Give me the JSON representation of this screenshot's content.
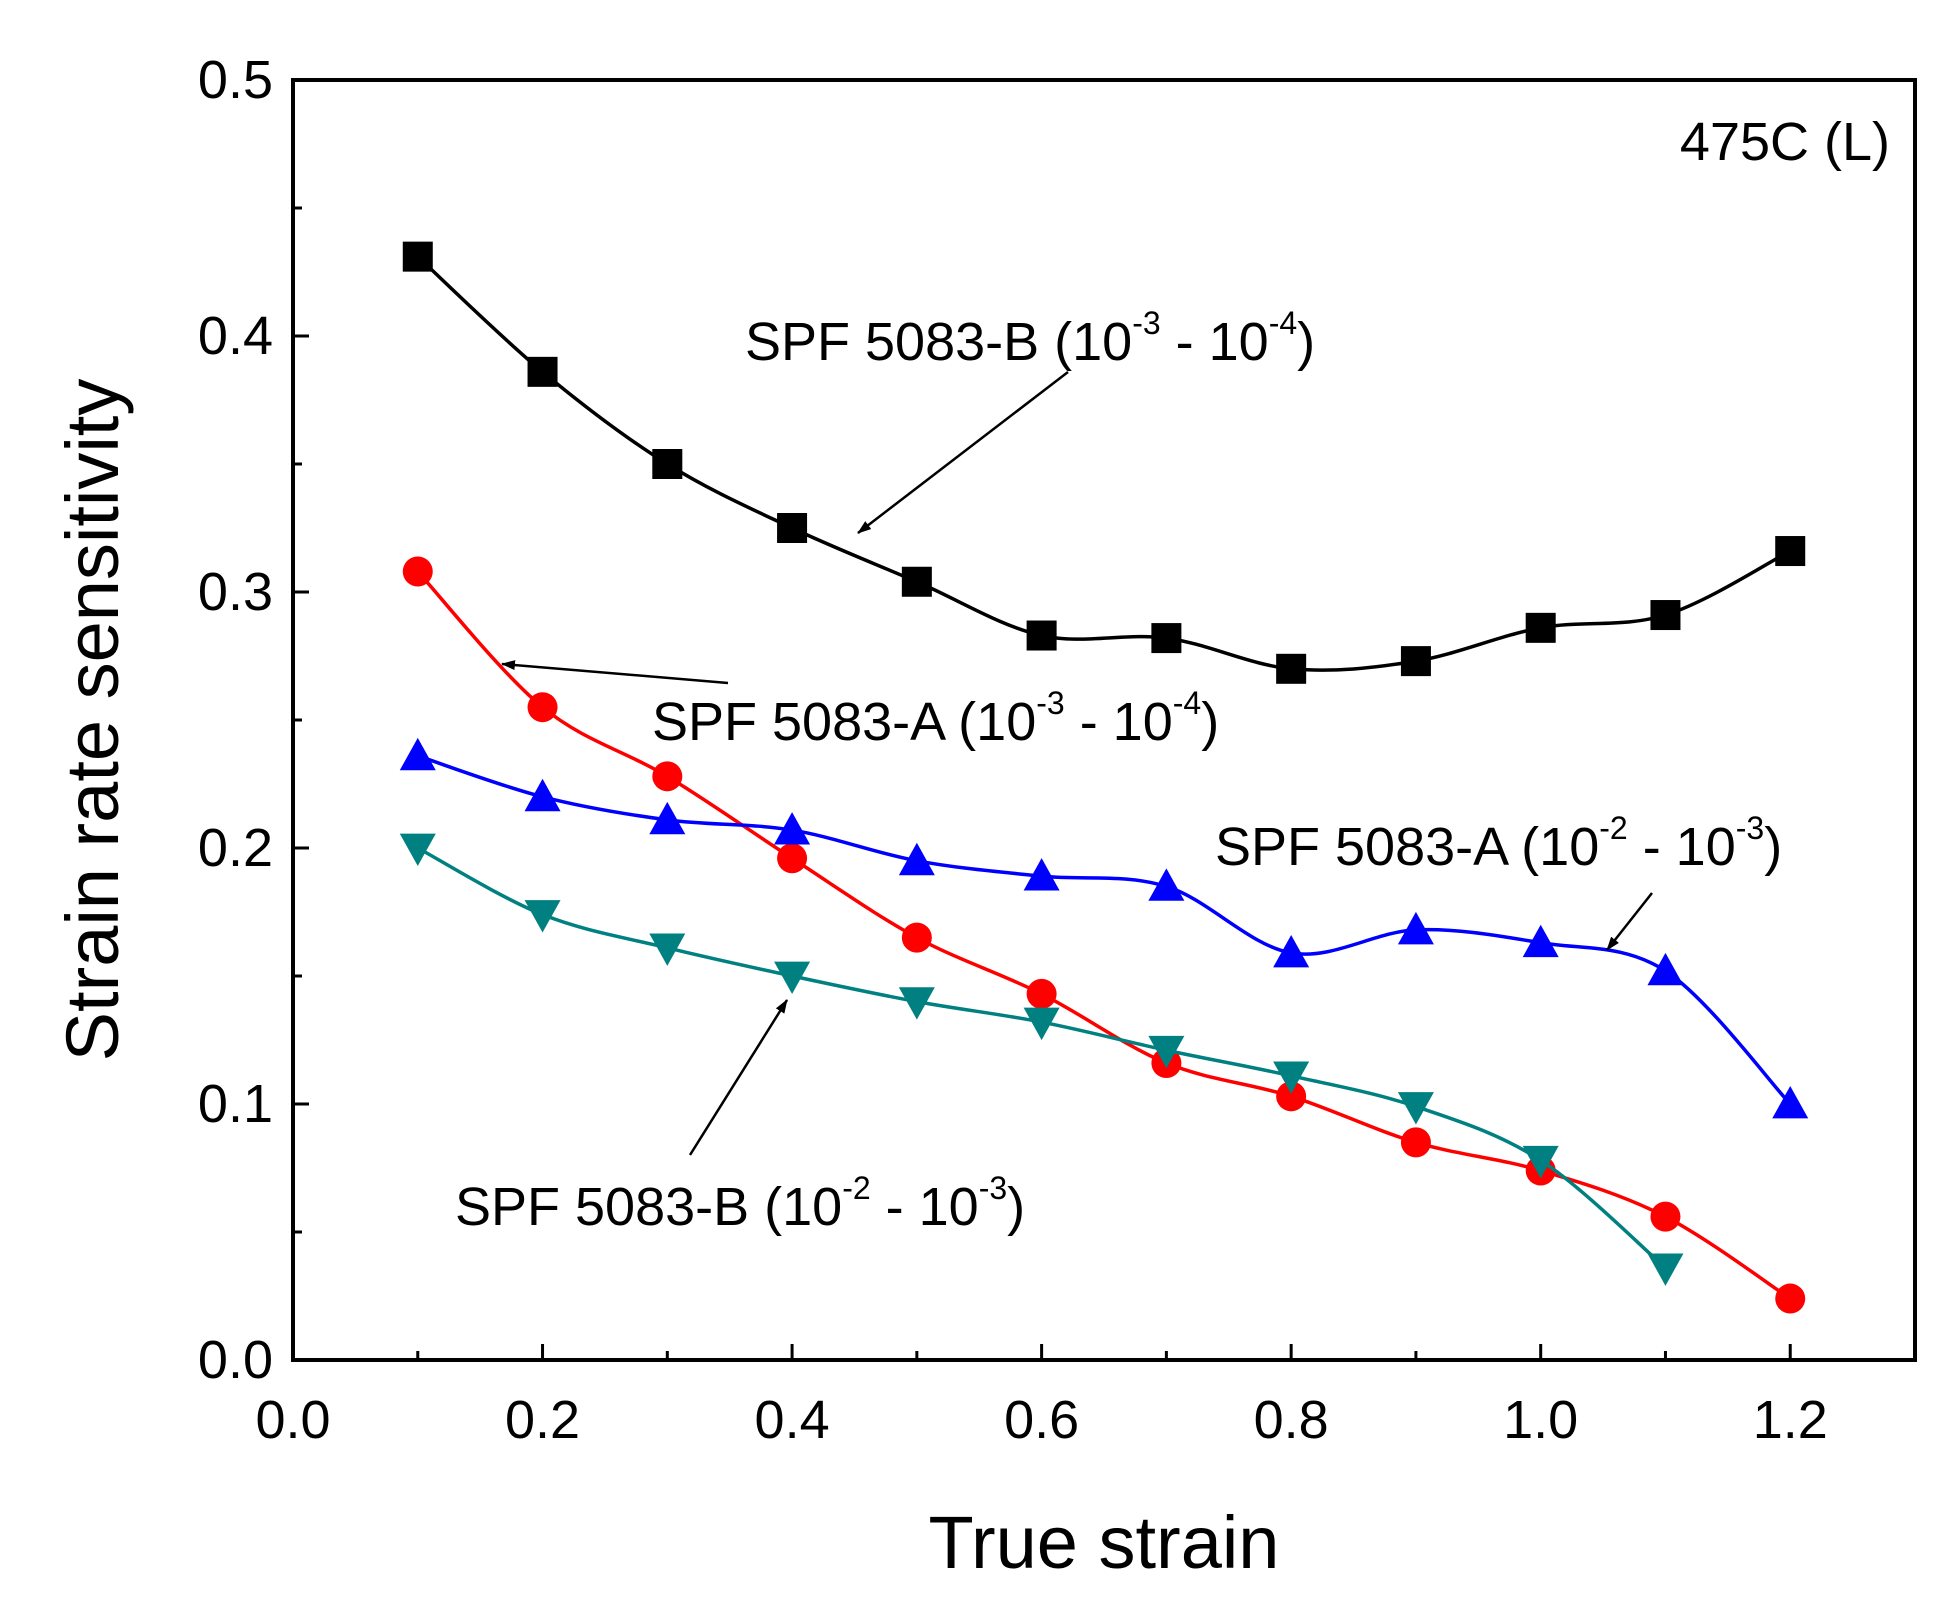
{
  "chart_data": {
    "type": "line",
    "title": "",
    "condition_label": "475C (L)",
    "xlabel": "True strain",
    "ylabel": "Strain rate sensitivity",
    "xlim": [
      0.0,
      1.3
    ],
    "ylim": [
      0.0,
      0.5
    ],
    "xticks": [
      "0.0",
      "0.2",
      "0.4",
      "0.6",
      "0.8",
      "1.0",
      "1.2"
    ],
    "yticks": [
      "0.0",
      "0.1",
      "0.2",
      "0.3",
      "0.4",
      "0.5"
    ],
    "series": [
      {
        "name": "SPF 5083-B (10-3 - 10-4)",
        "color": "#000000",
        "marker": "square",
        "x": [
          0.1,
          0.2,
          0.3,
          0.4,
          0.5,
          0.6,
          0.7,
          0.8,
          0.9,
          1.0,
          1.1,
          1.2
        ],
        "y": [
          0.431,
          0.386,
          0.35,
          0.325,
          0.304,
          0.283,
          0.282,
          0.27,
          0.273,
          0.286,
          0.291,
          0.316
        ]
      },
      {
        "name": "SPF 5083-A (10-3 - 10-4)",
        "color": "#ff0000",
        "marker": "circle",
        "x": [
          0.1,
          0.2,
          0.3,
          0.4,
          0.5,
          0.6,
          0.7,
          0.8,
          0.9,
          1.0,
          1.1,
          1.2
        ],
        "y": [
          0.308,
          0.255,
          0.228,
          0.196,
          0.165,
          0.143,
          0.116,
          0.103,
          0.085,
          0.074,
          0.056,
          0.024
        ]
      },
      {
        "name": "SPF 5083-A (10-2 - 10-3)",
        "color": "#0000ff",
        "marker": "triangle-up",
        "x": [
          0.1,
          0.2,
          0.3,
          0.4,
          0.5,
          0.6,
          0.7,
          0.8,
          0.9,
          1.0,
          1.1,
          1.2
        ],
        "y": [
          0.236,
          0.22,
          0.211,
          0.207,
          0.195,
          0.189,
          0.185,
          0.159,
          0.168,
          0.163,
          0.152,
          0.1
        ]
      },
      {
        "name": "SPF 5083-B (10-2 - 10-3)",
        "color": "#008080",
        "marker": "triangle-down",
        "x": [
          0.1,
          0.2,
          0.3,
          0.4,
          0.5,
          0.6,
          0.7,
          0.8,
          0.9,
          1.0,
          1.1
        ],
        "y": [
          0.2,
          0.174,
          0.161,
          0.15,
          0.14,
          0.132,
          0.121,
          0.111,
          0.099,
          0.078,
          0.036
        ]
      }
    ],
    "annotations": [
      {
        "id": "b34",
        "text_main": "SPF 5083-B (10",
        "exp1": "-3",
        "mid": " - 10",
        "exp2": "-4",
        "close": ")"
      },
      {
        "id": "a34",
        "text_main": "SPF 5083-A (10",
        "exp1": "-3",
        "mid": " - 10",
        "exp2": "-4",
        "close": ")"
      },
      {
        "id": "a23",
        "text_main": "SPF 5083-A (10",
        "exp1": "-2",
        "mid": " - 10",
        "exp2": "-3",
        "close": ")"
      },
      {
        "id": "b23",
        "text_main": "SPF 5083-B (10",
        "exp1": "-2",
        "mid": " - 10",
        "exp2": "-3",
        "close": ")"
      }
    ]
  }
}
